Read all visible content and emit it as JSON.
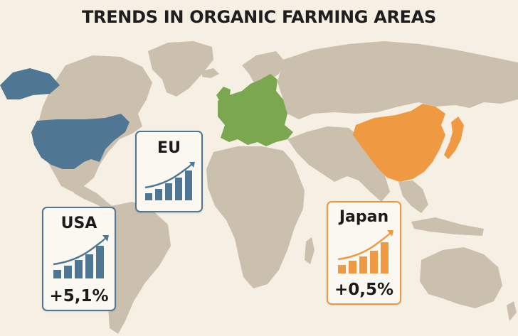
{
  "title": "TRENDS IN ORGANIC FARMING AREAS",
  "colors": {
    "background": "#f6efe4",
    "land": "#cbbfae",
    "usa": "#4f7793",
    "eu": "#7ca751",
    "china": "#ef9a43",
    "japan": "#ef9a43"
  },
  "highlighted_regions": [
    {
      "name": "USA",
      "color": "#4f7793"
    },
    {
      "name": "EU",
      "color": "#7ca751"
    },
    {
      "name": "China",
      "color": "#ef9a43"
    },
    {
      "name": "Japan",
      "color": "#ef9a43"
    }
  ],
  "cards": {
    "usa": {
      "name": "USA",
      "change": "+5,1%",
      "color": "#4f7793",
      "trend": "up"
    },
    "eu": {
      "name": "EU",
      "change": "",
      "color": "#4f7793",
      "trend": "up"
    },
    "japan": {
      "name": "Japan",
      "change": "+0,5%",
      "color": "#e99a45",
      "trend": "up"
    }
  }
}
